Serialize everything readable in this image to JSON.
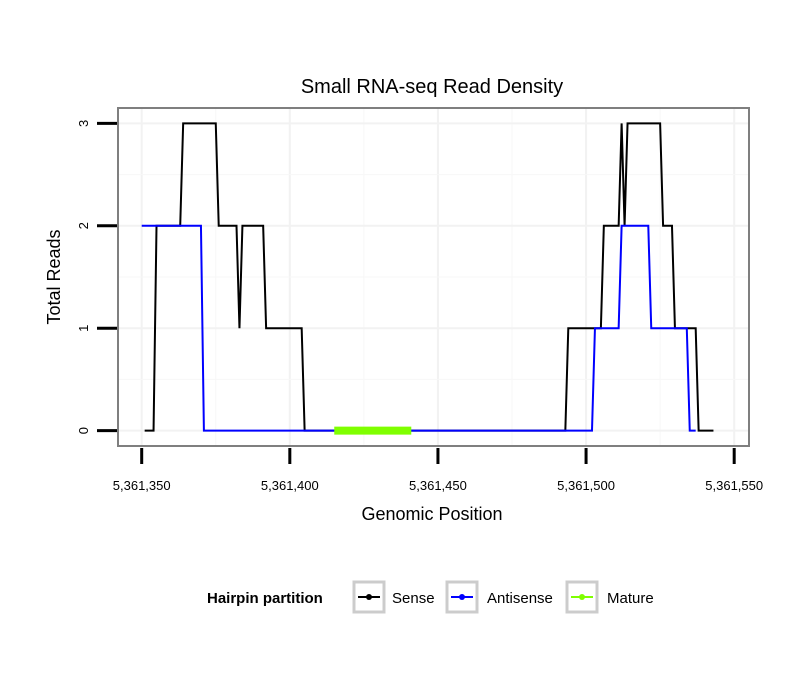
{
  "chart_data": {
    "type": "line",
    "title": "Small RNA-seq Read Density",
    "xlabel": "Genomic Position",
    "ylabel": "Total Reads",
    "xlim": [
      5361342,
      5361555
    ],
    "ylim": [
      -0.15,
      3.15
    ],
    "x_ticks": [
      5361350,
      5361400,
      5361450,
      5361500,
      5361550
    ],
    "x_tick_labels": [
      "5,361,350",
      "5,361,400",
      "5,361,450",
      "5,361,500",
      "5,361,550"
    ],
    "y_ticks": [
      0,
      1,
      2,
      3
    ],
    "y_tick_labels": [
      "0",
      "1",
      "2",
      "3"
    ],
    "grid": true,
    "legend": {
      "title": "Hairpin partition",
      "position": "bottom",
      "entries": [
        "Sense",
        "Antisense",
        "Mature"
      ]
    },
    "series": [
      {
        "name": "Sense",
        "color": "#000000",
        "points": [
          [
            5361351,
            0
          ],
          [
            5361354,
            0
          ],
          [
            5361355,
            2
          ],
          [
            5361363,
            2
          ],
          [
            5361364,
            3
          ],
          [
            5361375,
            3
          ],
          [
            5361376,
            2
          ],
          [
            5361382,
            2
          ],
          [
            5361383,
            1
          ],
          [
            5361384,
            2
          ],
          [
            5361391,
            2
          ],
          [
            5361392,
            1
          ],
          [
            5361404,
            1
          ],
          [
            5361405,
            0
          ],
          [
            5361493,
            0
          ],
          [
            5361494,
            1
          ],
          [
            5361505,
            1
          ],
          [
            5361506,
            2
          ],
          [
            5361511,
            2
          ],
          [
            5361512,
            3
          ],
          [
            5361513,
            2
          ],
          [
            5361514,
            3
          ],
          [
            5361525,
            3
          ],
          [
            5361526,
            2
          ],
          [
            5361529,
            2
          ],
          [
            5361530,
            1
          ],
          [
            5361537,
            1
          ],
          [
            5361538,
            0
          ],
          [
            5361543,
            0
          ]
        ]
      },
      {
        "name": "Antisense",
        "color": "#0000ff",
        "points": [
          [
            5361350,
            2
          ],
          [
            5361370,
            2
          ],
          [
            5361371,
            0
          ],
          [
            5361502,
            0
          ],
          [
            5361503,
            1
          ],
          [
            5361511,
            1
          ],
          [
            5361512,
            2
          ],
          [
            5361521,
            2
          ],
          [
            5361522,
            1
          ],
          [
            5361534,
            1
          ],
          [
            5361535,
            0
          ],
          [
            5361537,
            0
          ]
        ]
      },
      {
        "name": "Mature",
        "color": "#7fff00",
        "points": [
          [
            5361415,
            0
          ],
          [
            5361441,
            0
          ]
        ]
      }
    ]
  }
}
